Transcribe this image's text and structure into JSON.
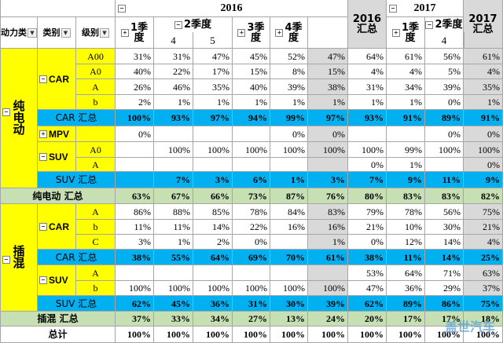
{
  "header": {
    "year_2016": "2016",
    "year_2017": "2017",
    "q1": "1季\n度",
    "q2": "2季度",
    "q3": "3季\n度",
    "q4": "4季\n度",
    "m4": "4",
    "m5": "5",
    "total_2016": "2016\n汇总",
    "total_2017": "2017\n汇总",
    "col_power": "动力类",
    "col_type": "类别",
    "col_level": "级别",
    "toggle_minus": "−",
    "toggle_plus": "+"
  },
  "labels": {
    "bev": "纯\n电\n动",
    "phev": "插\n混",
    "car": "CAR",
    "mpv": "MPV",
    "suv": "SUV",
    "total": "总计"
  },
  "rows": [
    {
      "level": "A00",
      "v": [
        "31%",
        "31%",
        "47%",
        "45%",
        "52%",
        "47%",
        "64%",
        "61%",
        "56%",
        "61%"
      ]
    },
    {
      "level": "A0",
      "v": [
        "40%",
        "22%",
        "17%",
        "15%",
        "8%",
        "15%",
        "4%",
        "4%",
        "5%",
        "4%"
      ]
    },
    {
      "level": "A",
      "v": [
        "26%",
        "46%",
        "35%",
        "40%",
        "39%",
        "38%",
        "31%",
        "34%",
        "39%",
        "35%"
      ]
    },
    {
      "level": "b",
      "v": [
        "2%",
        "1%",
        "1%",
        "1%",
        "1%",
        "1%",
        "1%",
        "1%",
        "0%",
        "1%"
      ]
    },
    {
      "label": "CAR 汇总",
      "v": [
        "100%",
        "93%",
        "97%",
        "94%",
        "99%",
        "97%",
        "93%",
        "91%",
        "89%",
        "91%"
      ]
    },
    {
      "level": "",
      "v": [
        "0%",
        "",
        "",
        "",
        "0%",
        "0%",
        "",
        "",
        "0%",
        "0%"
      ]
    },
    {
      "level": "A0",
      "v": [
        "",
        "100%",
        "100%",
        "100%",
        "100%",
        "100%",
        "100%",
        "99%",
        "100%",
        "100%"
      ]
    },
    {
      "level": "A",
      "v": [
        "",
        "",
        "",
        "",
        "",
        "",
        "0%",
        "1%",
        "",
        "0%"
      ]
    },
    {
      "label": "SUV 汇总",
      "v": [
        "",
        "7%",
        "3%",
        "6%",
        "1%",
        "3%",
        "7%",
        "9%",
        "11%",
        "9%"
      ]
    },
    {
      "label": "纯电动 汇总",
      "v": [
        "63%",
        "67%",
        "66%",
        "73%",
        "87%",
        "76%",
        "80%",
        "83%",
        "83%",
        "82%"
      ]
    },
    {
      "level": "A",
      "v": [
        "86%",
        "88%",
        "85%",
        "78%",
        "84%",
        "83%",
        "79%",
        "78%",
        "56%",
        "75%"
      ]
    },
    {
      "level": "b",
      "v": [
        "11%",
        "11%",
        "14%",
        "22%",
        "16%",
        "16%",
        "21%",
        "10%",
        "30%",
        "21%"
      ]
    },
    {
      "level": "C",
      "v": [
        "3%",
        "1%",
        "2%",
        "0%",
        "",
        "1%",
        "0%",
        "12%",
        "14%",
        "4%"
      ]
    },
    {
      "label": "CAR 汇总",
      "v": [
        "38%",
        "55%",
        "64%",
        "69%",
        "70%",
        "61%",
        "38%",
        "11%",
        "14%",
        "25%"
      ]
    },
    {
      "level": "A",
      "v": [
        "",
        "",
        "",
        "",
        "",
        "",
        "53%",
        "64%",
        "71%",
        "63%"
      ]
    },
    {
      "level": "b",
      "v": [
        "100%",
        "100%",
        "100%",
        "100%",
        "100%",
        "100%",
        "47%",
        "36%",
        "29%",
        "37%"
      ]
    },
    {
      "label": "SUV 汇总",
      "v": [
        "62%",
        "45%",
        "36%",
        "31%",
        "30%",
        "39%",
        "62%",
        "89%",
        "86%",
        "75%"
      ]
    },
    {
      "label": "插混 汇总",
      "v": [
        "37%",
        "33%",
        "34%",
        "27%",
        "13%",
        "24%",
        "20%",
        "17%",
        "17%",
        "18%"
      ]
    },
    {
      "label": "总计",
      "v": [
        "100%",
        "100%",
        "100%",
        "100%",
        "100%",
        "100%",
        "100%",
        "100%",
        "100%",
        "100%"
      ]
    }
  ],
  "watermark": "盖世汽车",
  "colors": {
    "yellow": "#ffff00",
    "blue": "#00b0f0",
    "green": "#c6e0b4",
    "gray": "#d9d9d9"
  }
}
